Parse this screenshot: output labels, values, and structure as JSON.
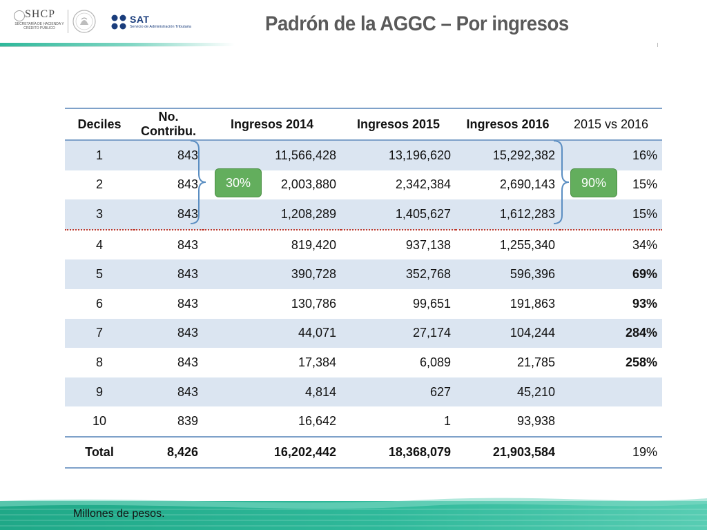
{
  "header": {
    "shcp_logo_text": "SHCP",
    "shcp_subtitle": "SECRETARÍA DE HACIENDA Y CRÉDITO PÚBLICO",
    "sat_logo_text": "SAT",
    "sat_subtitle": "Servicio de Administración Tributaria",
    "title": "Padrón de la AGGC – Por ingresos"
  },
  "table": {
    "columns": [
      "Deciles",
      "No. Contribu.",
      "Ingresos 2014",
      "Ingresos 2015",
      "Ingresos 2016",
      "2015 vs 2016"
    ],
    "rows": [
      [
        "1",
        "843",
        "11,566,428",
        "13,196,620",
        "15,292,382",
        "16%"
      ],
      [
        "2",
        "843",
        "2,003,880",
        "2,342,384",
        "2,690,143",
        "15%"
      ],
      [
        "3",
        "843",
        "1,208,289",
        "1,405,627",
        "1,612,283",
        "15%"
      ],
      [
        "4",
        "843",
        "819,420",
        "937,138",
        "1,255,340",
        "34%"
      ],
      [
        "5",
        "843",
        "390,728",
        "352,768",
        "596,396",
        "69%"
      ],
      [
        "6",
        "843",
        "130,786",
        "99,651",
        "191,863",
        "93%"
      ],
      [
        "7",
        "843",
        "44,071",
        "27,174",
        "104,244",
        "284%"
      ],
      [
        "8",
        "843",
        "17,384",
        "6,089",
        "21,785",
        "258%"
      ],
      [
        "9",
        "843",
        "4,814",
        "627",
        "45,210",
        ""
      ],
      [
        "10",
        "839",
        "16,642",
        "1",
        "93,938",
        ""
      ]
    ],
    "total": [
      "Total",
      "8,426",
      "16,202,442",
      "18,368,079",
      "21,903,584",
      "19%"
    ]
  },
  "badges": {
    "left": "30%",
    "right": "90%"
  },
  "footnote": "Millones de pesos.",
  "colors": {
    "accent_teal": "#2eb89a",
    "table_rule": "#7ea1c9",
    "row_shade": "#dbe5f1",
    "badge_green": "#63ae5d",
    "dotted_separator": "#c0392b"
  }
}
